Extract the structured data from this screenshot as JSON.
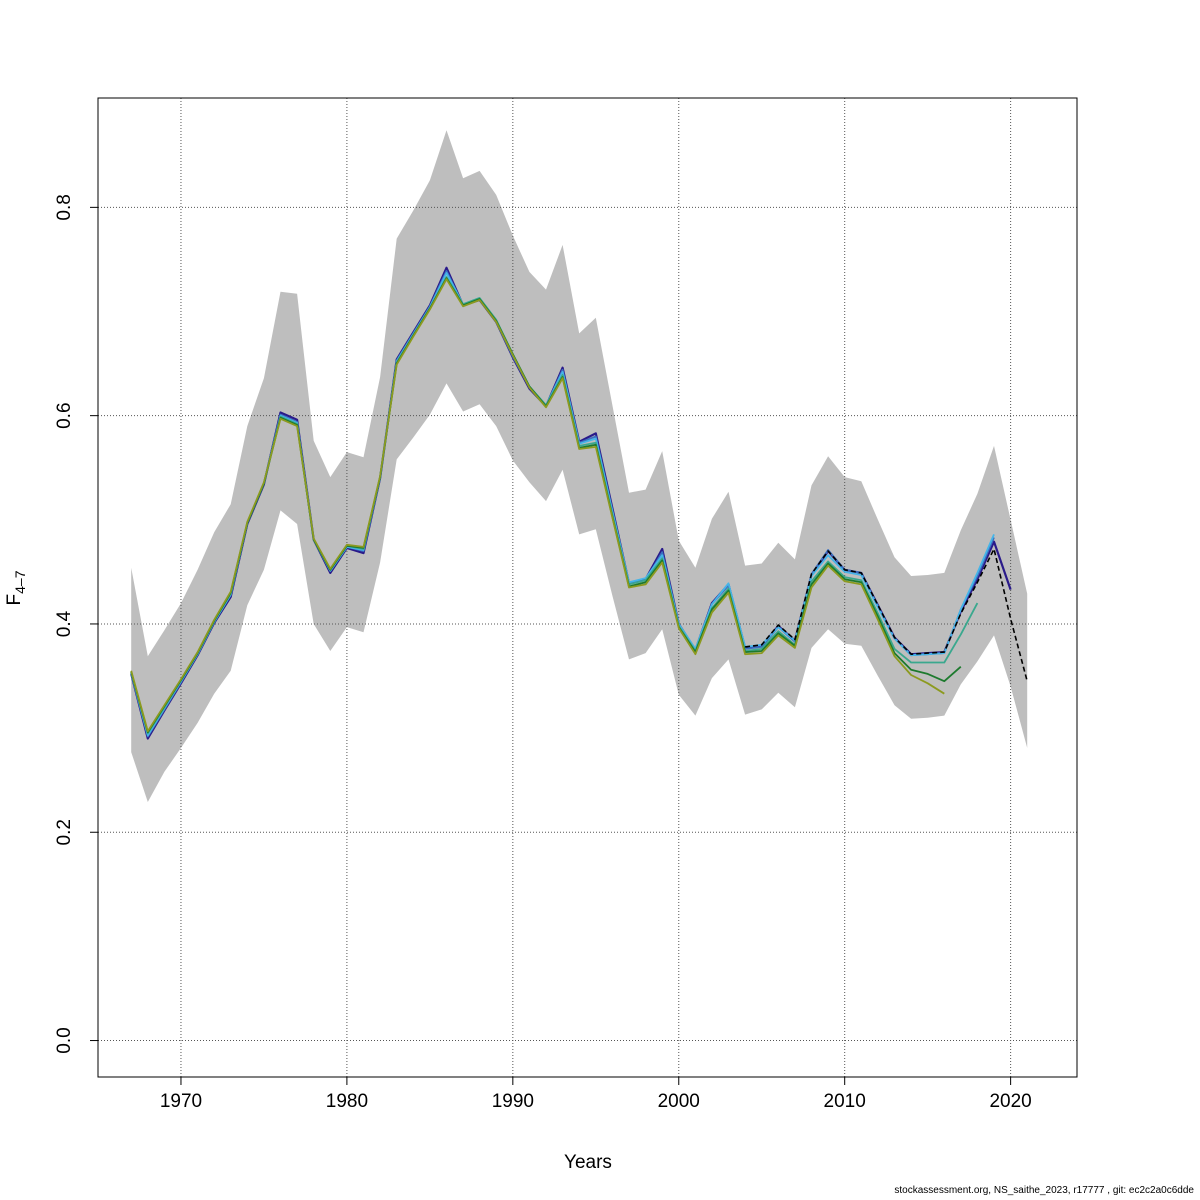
{
  "chart_data": {
    "type": "line",
    "title": "",
    "xlabel": "Years",
    "ylabel": "F",
    "ylabel_sub": "4–7",
    "xlim": [
      1965,
      2024
    ],
    "ylim": [
      -0.035,
      0.905
    ],
    "xticks": [
      1970,
      1980,
      1990,
      2000,
      2010,
      2020
    ],
    "yticks": [
      0.0,
      0.2,
      0.4,
      0.6,
      0.8
    ],
    "ytick_labels": [
      "0.0",
      "0.2",
      "0.4",
      "0.6",
      "0.8"
    ],
    "grid": true,
    "band": {
      "x": [
        1967,
        1968,
        1969,
        1970,
        1971,
        1972,
        1973,
        1974,
        1975,
        1976,
        1977,
        1978,
        1979,
        1980,
        1981,
        1982,
        1983,
        1984,
        1985,
        1986,
        1987,
        1988,
        1989,
        1990,
        1991,
        1992,
        1993,
        1994,
        1995,
        1996,
        1997,
        1998,
        1999,
        2000,
        2001,
        2002,
        2003,
        2004,
        2005,
        2006,
        2007,
        2008,
        2009,
        2010,
        2011,
        2012,
        2013,
        2014,
        2015,
        2016,
        2017,
        2018,
        2019,
        2020,
        2021
      ],
      "lower": [
        0.277,
        0.229,
        0.258,
        0.281,
        0.305,
        0.333,
        0.355,
        0.418,
        0.452,
        0.509,
        0.496,
        0.4,
        0.374,
        0.397,
        0.392,
        0.459,
        0.558,
        0.579,
        0.601,
        0.631,
        0.604,
        0.611,
        0.59,
        0.557,
        0.536,
        0.518,
        0.548,
        0.486,
        0.491,
        0.427,
        0.366,
        0.372,
        0.395,
        0.332,
        0.312,
        0.348,
        0.366,
        0.313,
        0.318,
        0.334,
        0.32,
        0.377,
        0.395,
        0.381,
        0.379,
        0.35,
        0.322,
        0.309,
        0.31,
        0.312,
        0.342,
        0.364,
        0.389,
        0.34,
        0.281
      ],
      "upper": [
        0.454,
        0.369,
        0.394,
        0.42,
        0.452,
        0.488,
        0.515,
        0.59,
        0.636,
        0.719,
        0.717,
        0.576,
        0.541,
        0.565,
        0.56,
        0.637,
        0.77,
        0.797,
        0.826,
        0.874,
        0.828,
        0.835,
        0.812,
        0.773,
        0.738,
        0.721,
        0.764,
        0.679,
        0.694,
        0.61,
        0.526,
        0.529,
        0.566,
        0.48,
        0.454,
        0.501,
        0.527,
        0.456,
        0.458,
        0.478,
        0.462,
        0.533,
        0.561,
        0.541,
        0.537,
        0.5,
        0.464,
        0.446,
        0.447,
        0.449,
        0.49,
        0.525,
        0.571,
        0.5,
        0.429
      ]
    },
    "series": [
      {
        "color": "#2a1a8a",
        "width": 2.2,
        "x": [
          1967,
          1968,
          1969,
          1970,
          1971,
          1972,
          1973,
          1974,
          1975,
          1976,
          1977,
          1978,
          1979,
          1980,
          1981,
          1982,
          1983,
          1984,
          1985,
          1986,
          1987,
          1988,
          1989,
          1990,
          1991,
          1992,
          1993,
          1994,
          1995,
          1996,
          1997,
          1998,
          1999,
          2000,
          2001,
          2002,
          2003,
          2004,
          2005,
          2006,
          2007,
          2008,
          2009,
          2010,
          2011,
          2012,
          2013,
          2014,
          2015,
          2016,
          2017,
          2018,
          2019,
          2020
        ],
        "y": [
          0.352,
          0.29,
          0.317,
          0.343,
          0.37,
          0.401,
          0.426,
          0.496,
          0.534,
          0.603,
          0.596,
          0.481,
          0.449,
          0.473,
          0.468,
          0.54,
          0.654,
          0.68,
          0.706,
          0.742,
          0.706,
          0.711,
          0.69,
          0.656,
          0.626,
          0.609,
          0.646,
          0.575,
          0.583,
          0.511,
          0.439,
          0.443,
          0.472,
          0.4,
          0.375,
          0.42,
          0.438,
          0.377,
          0.379,
          0.398,
          0.384,
          0.447,
          0.47,
          0.452,
          0.449,
          0.418,
          0.387,
          0.371,
          0.372,
          0.373,
          0.412,
          0.443,
          0.479,
          0.433
        ]
      },
      {
        "color": "#3c6fc0",
        "width": 1.8,
        "x": [
          1967,
          1968,
          1969,
          1970,
          1971,
          1972,
          1973,
          1974,
          1975,
          1976,
          1977,
          1978,
          1979,
          1980,
          1981,
          1982,
          1983,
          1984,
          1985,
          1986,
          1987,
          1988,
          1989,
          1990,
          1991,
          1992,
          1993,
          1994,
          1995,
          1996,
          1997,
          1998,
          1999,
          2000,
          2001,
          2002,
          2003,
          2004,
          2005,
          2006,
          2007,
          2008,
          2009,
          2010,
          2011,
          2012,
          2013,
          2014,
          2015,
          2016,
          2017,
          2018,
          2019
        ],
        "y": [
          0.353,
          0.292,
          0.318,
          0.344,
          0.371,
          0.402,
          0.428,
          0.497,
          0.535,
          0.601,
          0.594,
          0.481,
          0.451,
          0.474,
          0.47,
          0.54,
          0.653,
          0.679,
          0.705,
          0.739,
          0.706,
          0.712,
          0.69,
          0.657,
          0.627,
          0.609,
          0.644,
          0.574,
          0.58,
          0.509,
          0.439,
          0.442,
          0.469,
          0.4,
          0.375,
          0.419,
          0.437,
          0.376,
          0.378,
          0.397,
          0.383,
          0.448,
          0.471,
          0.452,
          0.449,
          0.417,
          0.386,
          0.37,
          0.371,
          0.372,
          0.414,
          0.446,
          0.483
        ]
      },
      {
        "color": "#45b5e8",
        "width": 1.8,
        "x": [
          1967,
          1968,
          1969,
          1970,
          1971,
          1972,
          1973,
          1974,
          1975,
          1976,
          1977,
          1978,
          1979,
          1980,
          1981,
          1982,
          1983,
          1984,
          1985,
          1986,
          1987,
          1988,
          1989,
          1990,
          1991,
          1992,
          1993,
          1994,
          1995,
          1996,
          1997,
          1998,
          1999,
          2000,
          2001,
          2002,
          2003,
          2004,
          2005,
          2006,
          2007,
          2008,
          2009,
          2010,
          2011,
          2012,
          2013,
          2014,
          2015,
          2016,
          2017,
          2018,
          2019
        ],
        "y": [
          0.353,
          0.293,
          0.319,
          0.345,
          0.371,
          0.402,
          0.428,
          0.497,
          0.535,
          0.6,
          0.593,
          0.481,
          0.451,
          0.474,
          0.471,
          0.541,
          0.652,
          0.678,
          0.704,
          0.737,
          0.707,
          0.713,
          0.691,
          0.658,
          0.628,
          0.61,
          0.642,
          0.573,
          0.578,
          0.508,
          0.44,
          0.444,
          0.466,
          0.4,
          0.376,
          0.419,
          0.439,
          0.378,
          0.38,
          0.397,
          0.384,
          0.446,
          0.466,
          0.45,
          0.447,
          0.416,
          0.386,
          0.37,
          0.371,
          0.372,
          0.414,
          0.449,
          0.486
        ]
      },
      {
        "color": "#3aa88e",
        "width": 1.8,
        "x": [
          1967,
          1968,
          1969,
          1970,
          1971,
          1972,
          1973,
          1974,
          1975,
          1976,
          1977,
          1978,
          1979,
          1980,
          1981,
          1982,
          1983,
          1984,
          1985,
          1986,
          1987,
          1988,
          1989,
          1990,
          1991,
          1992,
          1993,
          1994,
          1995,
          1996,
          1997,
          1998,
          1999,
          2000,
          2001,
          2002,
          2003,
          2004,
          2005,
          2006,
          2007,
          2008,
          2009,
          2010,
          2011,
          2012,
          2013,
          2014,
          2015,
          2016,
          2017,
          2018
        ],
        "y": [
          0.354,
          0.295,
          0.32,
          0.346,
          0.372,
          0.403,
          0.429,
          0.497,
          0.535,
          0.599,
          0.592,
          0.481,
          0.452,
          0.475,
          0.472,
          0.541,
          0.651,
          0.677,
          0.703,
          0.733,
          0.707,
          0.713,
          0.692,
          0.659,
          0.628,
          0.61,
          0.639,
          0.571,
          0.574,
          0.505,
          0.438,
          0.442,
          0.463,
          0.398,
          0.374,
          0.415,
          0.434,
          0.374,
          0.376,
          0.393,
          0.38,
          0.441,
          0.46,
          0.445,
          0.442,
          0.41,
          0.376,
          0.363,
          0.363,
          0.363,
          0.39,
          0.42
        ]
      },
      {
        "color": "#1d7a2e",
        "width": 1.8,
        "x": [
          1967,
          1968,
          1969,
          1970,
          1971,
          1972,
          1973,
          1974,
          1975,
          1976,
          1977,
          1978,
          1979,
          1980,
          1981,
          1982,
          1983,
          1984,
          1985,
          1986,
          1987,
          1988,
          1989,
          1990,
          1991,
          1992,
          1993,
          1994,
          1995,
          1996,
          1997,
          1998,
          1999,
          2000,
          2001,
          2002,
          2003,
          2004,
          2005,
          2006,
          2007,
          2008,
          2009,
          2010,
          2011,
          2012,
          2013,
          2014,
          2015,
          2016,
          2017
        ],
        "y": [
          0.354,
          0.296,
          0.321,
          0.346,
          0.372,
          0.403,
          0.43,
          0.497,
          0.535,
          0.598,
          0.591,
          0.481,
          0.452,
          0.475,
          0.473,
          0.541,
          0.65,
          0.677,
          0.703,
          0.732,
          0.706,
          0.712,
          0.691,
          0.659,
          0.628,
          0.609,
          0.637,
          0.569,
          0.572,
          0.503,
          0.436,
          0.44,
          0.461,
          0.397,
          0.373,
          0.414,
          0.432,
          0.373,
          0.374,
          0.391,
          0.379,
          0.438,
          0.458,
          0.443,
          0.44,
          0.407,
          0.372,
          0.356,
          0.352,
          0.345,
          0.359
        ]
      },
      {
        "color": "#8c9a1f",
        "width": 1.8,
        "x": [
          1967,
          1968,
          1969,
          1970,
          1971,
          1972,
          1973,
          1974,
          1975,
          1976,
          1977,
          1978,
          1979,
          1980,
          1981,
          1982,
          1983,
          1984,
          1985,
          1986,
          1987,
          1988,
          1989,
          1990,
          1991,
          1992,
          1993,
          1994,
          1995,
          1996,
          1997,
          1998,
          1999,
          2000,
          2001,
          2002,
          2003,
          2004,
          2005,
          2006,
          2007,
          2008,
          2009,
          2010,
          2011,
          2012,
          2013,
          2014,
          2015,
          2016
        ],
        "y": [
          0.355,
          0.297,
          0.322,
          0.347,
          0.373,
          0.404,
          0.431,
          0.498,
          0.536,
          0.597,
          0.59,
          0.482,
          0.453,
          0.476,
          0.474,
          0.542,
          0.649,
          0.676,
          0.702,
          0.731,
          0.705,
          0.711,
          0.69,
          0.658,
          0.627,
          0.608,
          0.636,
          0.568,
          0.57,
          0.502,
          0.435,
          0.438,
          0.459,
          0.396,
          0.371,
          0.411,
          0.43,
          0.371,
          0.372,
          0.389,
          0.377,
          0.435,
          0.456,
          0.441,
          0.438,
          0.404,
          0.369,
          0.351,
          0.343,
          0.333
        ]
      },
      {
        "color": "#000000",
        "width": 1.6,
        "dash": "5,3",
        "x": [
          2004,
          2005,
          2006,
          2007,
          2008,
          2009,
          2010,
          2011,
          2012,
          2013,
          2014,
          2015,
          2016,
          2017,
          2018,
          2019,
          2020,
          2021
        ],
        "y": [
          0.378,
          0.38,
          0.399,
          0.385,
          0.448,
          0.47,
          0.452,
          0.449,
          0.418,
          0.387,
          0.371,
          0.372,
          0.373,
          0.41,
          0.44,
          0.472,
          0.405,
          0.345
        ]
      }
    ]
  },
  "footer": "stockassessment.org, NS_saithe_2023, r17777 , git: ec2c2a0c6dde"
}
